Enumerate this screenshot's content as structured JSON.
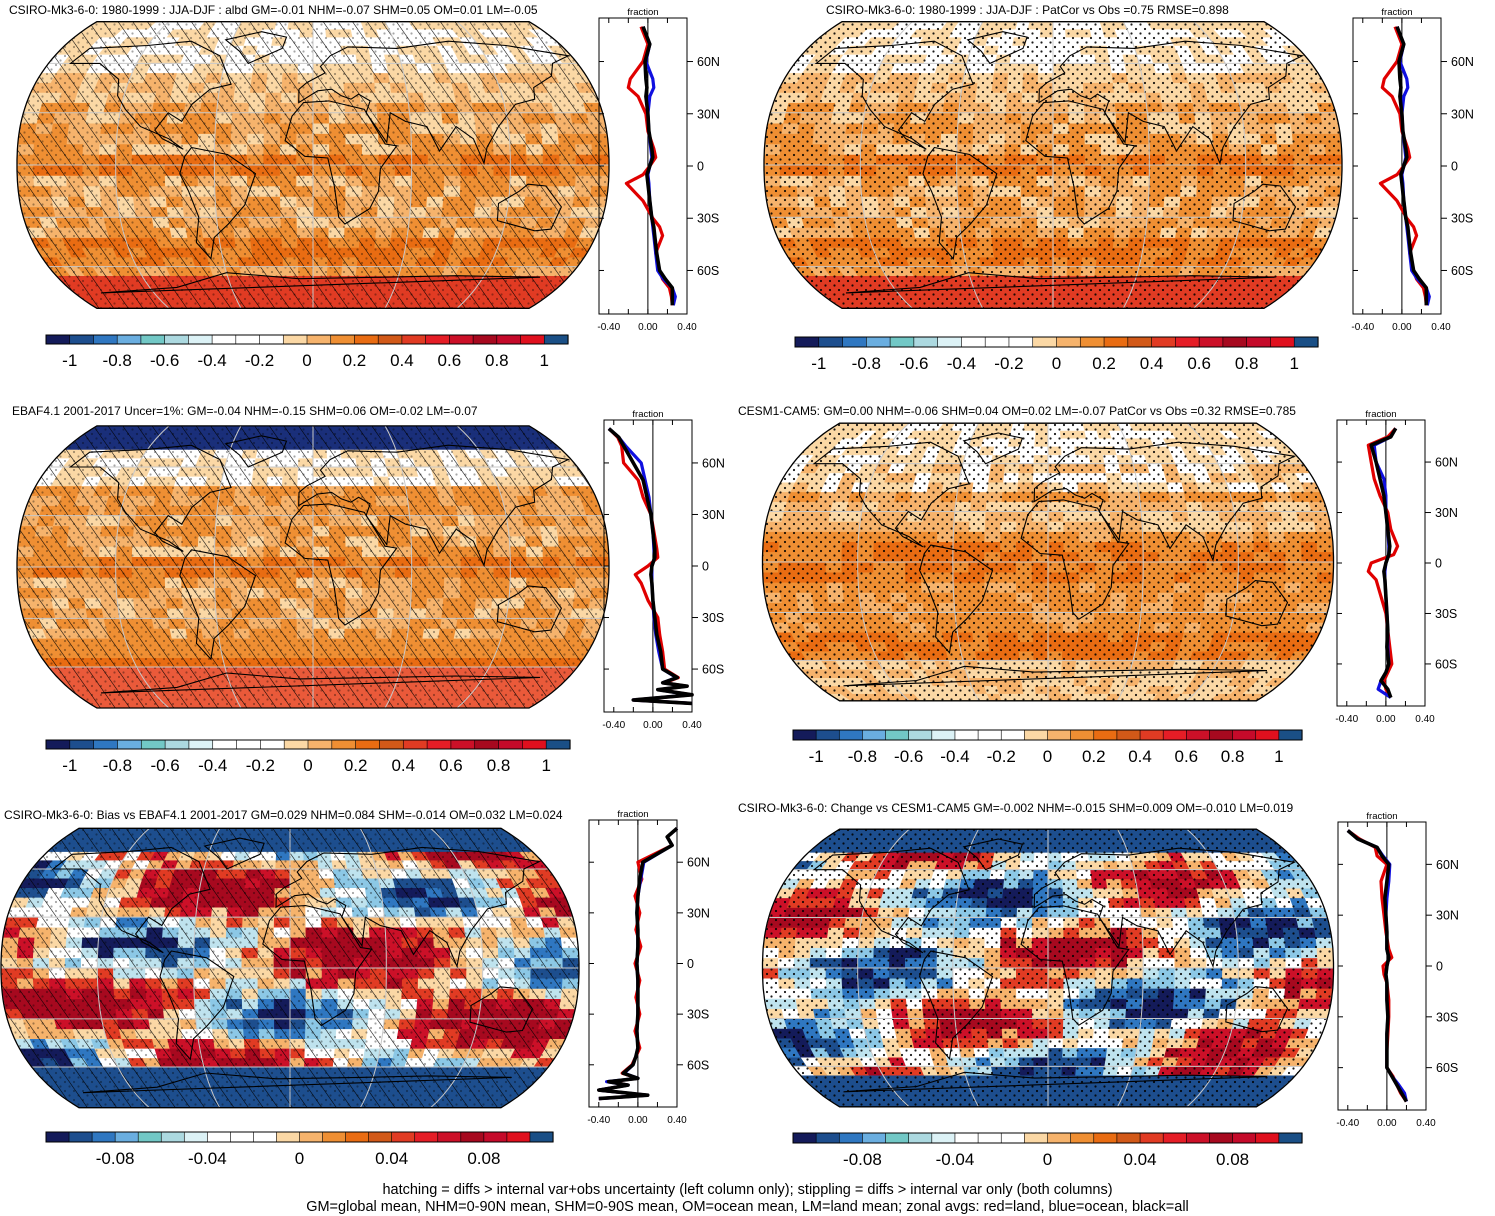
{
  "footer": {
    "line1": "hatching = diffs > internal var+obs uncertainty (left column only); stippling = diffs > internal var only (both columns)",
    "line2": "GM=global mean, NHM=0-90N mean, SHM=0-90S mean, OM=ocean mean, LM=land mean; zonal avgs: red=land, blue=ocean, black=all"
  },
  "colors": {
    "land_line": "#e00000",
    "ocean_line": "#1010e0",
    "all_line": "#000000",
    "graticule": "#c8c8c8",
    "coast": "#000000"
  },
  "colorscales": {
    "abs": [
      "#141b5a",
      "#1d4e8e",
      "#2f77c1",
      "#6aaee0",
      "#72c8c6",
      "#acd9e0",
      "#dcf2f6",
      "#ffffff",
      "#ffffff",
      "#ffffff",
      "#fbd8a5",
      "#f6b36c",
      "#ef8f33",
      "#e96c12",
      "#d25918",
      "#e13b23",
      "#e51d26",
      "#cc1028",
      "#a7091f",
      "#c50a2a",
      "#e0101e",
      "#1a4f86"
    ],
    "diff": [
      "#141b5a",
      "#1d4e8e",
      "#2f77c1",
      "#6aaee0",
      "#72c8c6",
      "#acd9e0",
      "#dcf2f6",
      "#ffffff",
      "#ffffff",
      "#ffffff",
      "#fbd8a5",
      "#f6b36c",
      "#ef8f33",
      "#e96c12",
      "#d25918",
      "#e13b23",
      "#e51d26",
      "#cc1028",
      "#a7091f",
      "#c50a2a",
      "#e0101e",
      "#1a4f86"
    ]
  },
  "chart_data": [
    {
      "type": "heatmap",
      "title": "CSIRO-Mk3-6-0: 1980-1999 : JJA-DJF : albd GM=-0.01 NHM=-0.07 SHM=0.05 OM=0.01 LM=-0.05",
      "field": "mk3",
      "marks": "hatch+stipple",
      "colorbar_labels": [
        "-1",
        "-0.8",
        "-0.6",
        "-0.4",
        "-0.2",
        "0",
        "0.2",
        "0.4",
        "0.6",
        "0.8",
        "1"
      ],
      "colorscale": "abs",
      "zonal": {
        "xlabel": "fraction",
        "xticks": [
          "-0.40",
          "0.00",
          "0.40"
        ],
        "yticks": [
          "60N",
          "30N",
          "0",
          "30S",
          "60S"
        ],
        "xlim": [
          -0.5,
          0.4
        ],
        "lat": [
          80,
          70,
          60,
          50,
          45,
          40,
          30,
          20,
          10,
          5,
          0,
          -5,
          -10,
          -20,
          -30,
          -35,
          -40,
          -50,
          -60,
          -65,
          -70,
          -75,
          -80
        ],
        "all": [
          -0.05,
          0.02,
          -0.03,
          -0.02,
          -0.01,
          -0.02,
          0.0,
          0.01,
          0.04,
          0.05,
          0.02,
          -0.01,
          0.0,
          0.02,
          0.04,
          0.06,
          0.07,
          0.09,
          0.12,
          0.18,
          0.25,
          0.25,
          0.25
        ],
        "ocean": [
          -0.05,
          0.02,
          -0.02,
          0.05,
          0.06,
          0.02,
          0.0,
          0.01,
          0.03,
          0.04,
          0.02,
          0.0,
          0.01,
          0.02,
          0.04,
          0.05,
          0.06,
          0.08,
          0.1,
          0.16,
          0.25,
          0.28,
          0.26
        ],
        "land": [
          -0.07,
          0.0,
          -0.05,
          -0.18,
          -0.2,
          -0.1,
          -0.02,
          0.0,
          0.06,
          0.08,
          0.02,
          -0.05,
          -0.22,
          -0.05,
          0.05,
          0.12,
          0.15,
          0.08,
          0.12,
          0.15,
          0.22,
          0.24,
          0.25
        ]
      }
    },
    {
      "type": "heatmap",
      "title": "CSIRO-Mk3-6-0: 1980-1999 : JJA-DJF : PatCor vs Obs =0.75 RMSE=0.898",
      "field": "mk3",
      "marks": "stipple",
      "colorbar_labels": [
        "-1",
        "-0.8",
        "-0.6",
        "-0.4",
        "-0.2",
        "0",
        "0.2",
        "0.4",
        "0.6",
        "0.8",
        "1"
      ],
      "colorscale": "abs",
      "zonal": {
        "xlabel": "fraction",
        "xticks": [
          "-0.40",
          "0.00",
          "0.40"
        ],
        "yticks": [
          "60N",
          "30N",
          "0",
          "30S",
          "60S"
        ],
        "xlim": [
          -0.5,
          0.4
        ],
        "lat": [
          80,
          70,
          60,
          50,
          45,
          40,
          30,
          20,
          10,
          5,
          0,
          -5,
          -10,
          -20,
          -30,
          -35,
          -40,
          -50,
          -60,
          -65,
          -70,
          -75,
          -80
        ],
        "all": [
          -0.05,
          0.02,
          -0.03,
          -0.02,
          -0.01,
          -0.02,
          0.0,
          0.01,
          0.04,
          0.05,
          0.02,
          -0.01,
          0.0,
          0.02,
          0.04,
          0.06,
          0.07,
          0.09,
          0.12,
          0.18,
          0.25,
          0.25,
          0.25
        ],
        "ocean": [
          -0.05,
          0.02,
          -0.02,
          0.05,
          0.06,
          0.02,
          0.0,
          0.01,
          0.03,
          0.04,
          0.02,
          0.0,
          0.01,
          0.02,
          0.04,
          0.05,
          0.06,
          0.08,
          0.1,
          0.16,
          0.25,
          0.28,
          0.26
        ],
        "land": [
          -0.07,
          0.0,
          -0.05,
          -0.18,
          -0.2,
          -0.1,
          -0.02,
          0.0,
          0.06,
          0.08,
          0.02,
          -0.05,
          -0.22,
          -0.05,
          0.05,
          0.12,
          0.15,
          0.08,
          0.12,
          0.15,
          0.22,
          0.24,
          0.25
        ]
      }
    },
    {
      "type": "heatmap",
      "title": "EBAF4.1 2001-2017 Uncer=1%: GM=-0.04 NHM=-0.15 SHM=0.06 OM=-0.02 LM=-0.07",
      "field": "ebaf",
      "marks": "hatch+stipple",
      "colorbar_labels": [
        "-1",
        "-0.8",
        "-0.6",
        "-0.4",
        "-0.2",
        "0",
        "0.2",
        "0.4",
        "0.6",
        "0.8",
        "1"
      ],
      "colorscale": "abs",
      "zonal": {
        "xlabel": "fraction",
        "xticks": [
          "-0.40",
          "0.00",
          "0.40"
        ],
        "yticks": [
          "60N",
          "30N",
          "0",
          "30S",
          "60S"
        ],
        "xlim": [
          -0.5,
          0.4
        ],
        "lat": [
          80,
          75,
          70,
          60,
          50,
          40,
          30,
          20,
          10,
          5,
          0,
          -5,
          -10,
          -20,
          -30,
          -40,
          -50,
          -60,
          -65,
          -68,
          -70,
          -72,
          -75,
          -78,
          -80
        ],
        "all": [
          -0.45,
          -0.35,
          -0.3,
          -0.2,
          -0.1,
          -0.06,
          -0.02,
          0.0,
          0.02,
          0.02,
          -0.01,
          -0.02,
          -0.01,
          0.0,
          0.02,
          0.04,
          0.08,
          0.1,
          0.25,
          0.1,
          0.35,
          0.05,
          0.4,
          -0.2,
          0.4
        ],
        "ocean": [
          -0.45,
          -0.35,
          -0.28,
          -0.12,
          -0.08,
          -0.04,
          -0.02,
          0.0,
          0.01,
          0.02,
          -0.01,
          -0.01,
          -0.01,
          0.0,
          0.01,
          0.03,
          0.06,
          0.1,
          0.24,
          0.1,
          0.34,
          0.05,
          0.38,
          -0.2,
          0.4
        ],
        "land": [
          -0.45,
          -0.36,
          -0.32,
          -0.3,
          -0.15,
          -0.1,
          -0.02,
          0.01,
          0.04,
          0.05,
          -0.05,
          -0.18,
          -0.12,
          -0.05,
          0.05,
          0.07,
          0.1,
          0.12,
          0.26,
          0.12,
          0.35,
          0.06,
          0.4,
          -0.2,
          0.4
        ]
      }
    },
    {
      "type": "heatmap",
      "title": "CESM1-CAM5: GM=0.00 NHM=-0.06 SHM=0.04 OM=0.02 LM=-0.07 PatCor vs Obs =0.32 RMSE=0.785",
      "field": "cesm",
      "marks": "stipple",
      "colorbar_labels": [
        "-1",
        "-0.8",
        "-0.6",
        "-0.4",
        "-0.2",
        "0",
        "0.2",
        "0.4",
        "0.6",
        "0.8",
        "1"
      ],
      "colorscale": "abs",
      "zonal": {
        "xlabel": "fraction",
        "xticks": [
          "-0.40",
          "0.00",
          "0.40"
        ],
        "yticks": [
          "60N",
          "30N",
          "0",
          "30S",
          "60S"
        ],
        "xlim": [
          -0.5,
          0.4
        ],
        "lat": [
          80,
          75,
          70,
          60,
          50,
          40,
          30,
          20,
          10,
          5,
          0,
          -5,
          -10,
          -20,
          -30,
          -40,
          -50,
          -60,
          -65,
          -70,
          -75,
          -80
        ],
        "all": [
          0.1,
          0.05,
          -0.15,
          -0.1,
          -0.06,
          -0.02,
          0.0,
          0.02,
          0.04,
          0.03,
          0.0,
          -0.02,
          -0.01,
          0.0,
          0.01,
          0.02,
          0.01,
          0.03,
          0.0,
          -0.05,
          0.02,
          0.05
        ],
        "ocean": [
          0.1,
          0.05,
          -0.12,
          -0.1,
          -0.02,
          0.0,
          0.0,
          0.02,
          0.03,
          0.03,
          0.0,
          -0.01,
          -0.01,
          0.0,
          0.01,
          0.02,
          0.02,
          0.03,
          0.0,
          -0.05,
          -0.08,
          0.05
        ],
        "land": [
          0.1,
          0.02,
          -0.18,
          -0.15,
          -0.12,
          -0.06,
          0.02,
          0.05,
          0.12,
          0.08,
          -0.15,
          -0.18,
          -0.1,
          -0.05,
          0.0,
          0.02,
          0.04,
          0.06,
          0.02,
          -0.02,
          0.0,
          0.05
        ]
      }
    },
    {
      "type": "heatmap",
      "title": "CSIRO-Mk3-6-0: Bias vs EBAF4.1 2001-2017 GM=0.029 NHM=0.084 SHM=-0.014 OM=0.032 LM=0.024",
      "field": "bias",
      "marks": "hatch+stipple",
      "colorbar_labels": [
        "-0.08",
        "-0.04",
        "0",
        "0.04",
        "0.08"
      ],
      "colorscale": "diff",
      "zonal": {
        "xlabel": "fraction",
        "xticks": [
          "-0.40",
          "0.00",
          "0.40"
        ],
        "yticks": [
          "60N",
          "30N",
          "0",
          "30S",
          "60S"
        ],
        "xlim": [
          -0.5,
          0.4
        ],
        "lat": [
          80,
          75,
          70,
          60,
          50,
          40,
          30,
          20,
          10,
          0,
          -10,
          -20,
          -30,
          -40,
          -50,
          -55,
          -60,
          -65,
          -68,
          -70,
          -72,
          -75,
          -78,
          -80
        ],
        "all": [
          0.4,
          0.3,
          0.35,
          0.05,
          0.02,
          0.0,
          -0.01,
          0.0,
          0.0,
          -0.01,
          0.0,
          0.0,
          0.0,
          -0.01,
          0.0,
          -0.02,
          -0.05,
          -0.15,
          0.0,
          -0.3,
          -0.1,
          -0.4,
          0.1,
          -0.4
        ],
        "ocean": [
          0.4,
          0.3,
          0.35,
          0.06,
          0.03,
          0.0,
          -0.01,
          0.0,
          0.0,
          -0.01,
          0.0,
          0.0,
          0.0,
          -0.01,
          0.0,
          -0.02,
          -0.05,
          -0.14,
          0.0,
          -0.32,
          -0.1,
          -0.4,
          0.1,
          -0.4
        ],
        "land": [
          0.4,
          0.3,
          0.35,
          0.0,
          0.04,
          -0.03,
          0.02,
          -0.02,
          0.03,
          -0.03,
          0.02,
          -0.02,
          0.02,
          -0.03,
          0.02,
          -0.02,
          -0.06,
          -0.16,
          0.0,
          -0.28,
          -0.1,
          -0.4,
          0.1,
          -0.4
        ]
      }
    },
    {
      "type": "heatmap",
      "title": "CSIRO-Mk3-6-0: Change vs CESM1-CAM5 GM=-0.002 NHM=-0.015 SHM=0.009 OM=-0.010 LM=0.019",
      "field": "change",
      "marks": "stipple",
      "colorbar_labels": [
        "-0.08",
        "-0.04",
        "0",
        "0.04",
        "0.08"
      ],
      "colorscale": "diff",
      "zonal": {
        "xlabel": "fraction",
        "xticks": [
          "-0.40",
          "0.00",
          "0.40"
        ],
        "yticks": [
          "60N",
          "30N",
          "0",
          "30S",
          "60S"
        ],
        "xlim": [
          -0.5,
          0.4
        ],
        "lat": [
          80,
          75,
          70,
          65,
          60,
          50,
          40,
          30,
          20,
          10,
          5,
          0,
          -5,
          -10,
          -20,
          -30,
          -40,
          -50,
          -60,
          -65,
          -70,
          -75,
          -80
        ],
        "all": [
          -0.4,
          -0.3,
          -0.1,
          -0.05,
          0.02,
          0.0,
          -0.02,
          -0.01,
          0.0,
          0.0,
          0.02,
          0.0,
          -0.01,
          0.0,
          0.0,
          0.01,
          0.0,
          0.0,
          0.0,
          0.05,
          0.1,
          0.15,
          0.2
        ],
        "ocean": [
          -0.4,
          -0.3,
          -0.1,
          -0.04,
          0.03,
          0.02,
          0.0,
          -0.01,
          0.0,
          0.0,
          0.02,
          0.0,
          -0.01,
          0.0,
          0.0,
          0.01,
          0.0,
          0.0,
          0.0,
          0.05,
          0.12,
          0.18,
          0.2
        ],
        "land": [
          -0.4,
          -0.28,
          -0.12,
          -0.1,
          0.0,
          -0.06,
          -0.05,
          -0.03,
          -0.01,
          0.02,
          0.05,
          -0.04,
          -0.03,
          0.0,
          0.02,
          0.02,
          0.01,
          0.0,
          0.0,
          0.06,
          0.1,
          0.14,
          0.2
        ]
      }
    }
  ]
}
